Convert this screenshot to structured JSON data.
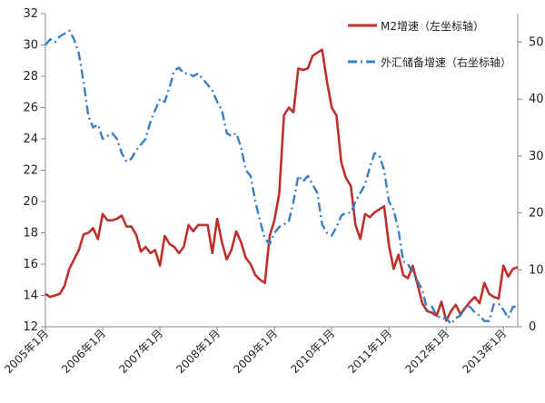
{
  "chart_data": {
    "type": "line",
    "title": "",
    "xlabel": "",
    "ylabel_left": "",
    "ylabel_right": "",
    "grid": false,
    "legend_position": "top-right",
    "y_left": {
      "min": 12,
      "max": 32,
      "ticks": [
        12,
        14,
        16,
        18,
        20,
        22,
        24,
        26,
        28,
        30,
        32
      ]
    },
    "y_right": {
      "min": 0,
      "max": 55,
      "ticks": [
        0,
        10,
        20,
        30,
        40,
        50
      ]
    },
    "x_ticks": [
      "2005年1月",
      "2006年1月",
      "2007年1月",
      "2008年1月",
      "2009年1月",
      "2010年1月",
      "2011年1月",
      "2012年1月",
      "2013年1月"
    ],
    "x_start": "2005-01",
    "series": [
      {
        "name": "M2增速（左坐标轴）",
        "axis": "left",
        "color": "#c0302b",
        "dash": "solid",
        "x": [
          "2005-01",
          "2005-02",
          "2005-03",
          "2005-04",
          "2005-05",
          "2005-06",
          "2005-07",
          "2005-08",
          "2005-09",
          "2005-10",
          "2005-11",
          "2005-12",
          "2006-01",
          "2006-02",
          "2006-03",
          "2006-04",
          "2006-05",
          "2006-06",
          "2006-07",
          "2006-08",
          "2006-09",
          "2006-10",
          "2006-11",
          "2006-12",
          "2007-01",
          "2007-02",
          "2007-03",
          "2007-04",
          "2007-05",
          "2007-06",
          "2007-07",
          "2007-08",
          "2007-09",
          "2007-10",
          "2007-11",
          "2007-12",
          "2008-01",
          "2008-02",
          "2008-03",
          "2008-04",
          "2008-05",
          "2008-06",
          "2008-07",
          "2008-08",
          "2008-09",
          "2008-10",
          "2008-11",
          "2008-12",
          "2009-01",
          "2009-02",
          "2009-03",
          "2009-04",
          "2009-05",
          "2009-06",
          "2009-07",
          "2009-08",
          "2009-09",
          "2009-10",
          "2009-11",
          "2009-12",
          "2010-01",
          "2010-02",
          "2010-03",
          "2010-04",
          "2010-05",
          "2010-06",
          "2010-07",
          "2010-08",
          "2010-09",
          "2010-10",
          "2010-11",
          "2010-12",
          "2011-01",
          "2011-02",
          "2011-03",
          "2011-04",
          "2011-05",
          "2011-06",
          "2011-07",
          "2011-08",
          "2011-09",
          "2011-10",
          "2011-11",
          "2011-12",
          "2012-01",
          "2012-02",
          "2012-03",
          "2012-04",
          "2012-05",
          "2012-06",
          "2012-07",
          "2012-08",
          "2012-09",
          "2012-10",
          "2012-11",
          "2012-12",
          "2013-01",
          "2013-02",
          "2013-03",
          "2013-04"
        ],
        "values": [
          14.1,
          13.9,
          14.0,
          14.1,
          14.6,
          15.7,
          16.3,
          16.9,
          17.9,
          18.0,
          18.3,
          17.6,
          19.2,
          18.8,
          18.8,
          18.9,
          19.1,
          18.4,
          18.4,
          17.9,
          16.8,
          17.1,
          16.7,
          16.9,
          15.9,
          17.8,
          17.3,
          17.1,
          16.7,
          17.1,
          18.5,
          18.1,
          18.5,
          18.5,
          18.5,
          16.7,
          18.9,
          17.4,
          16.3,
          16.9,
          18.1,
          17.4,
          16.4,
          16.0,
          15.3,
          15.0,
          14.8,
          17.8,
          18.8,
          20.5,
          25.5,
          26.0,
          25.7,
          28.5,
          28.4,
          28.5,
          29.3,
          29.5,
          29.7,
          27.7,
          26.0,
          25.5,
          22.5,
          21.5,
          21.0,
          18.5,
          17.6,
          19.2,
          19.0,
          19.3,
          19.5,
          19.7,
          17.2,
          15.7,
          16.6,
          15.3,
          15.1,
          15.9,
          14.7,
          13.5,
          13.0,
          12.9,
          12.7,
          13.6,
          12.4,
          13.0,
          13.4,
          12.8,
          13.2,
          13.6,
          13.9,
          13.5,
          14.8,
          14.1,
          13.9,
          13.8,
          15.9,
          15.2,
          15.7,
          15.8
        ]
      },
      {
        "name": "外汇储备增速（右坐标轴）",
        "axis": "right",
        "color": "#3a7fc1",
        "dash": "dashdot",
        "x": [
          "2005-01",
          "2005-02",
          "2005-03",
          "2005-04",
          "2005-05",
          "2005-06",
          "2005-07",
          "2005-08",
          "2005-09",
          "2005-10",
          "2005-11",
          "2005-12",
          "2006-01",
          "2006-02",
          "2006-03",
          "2006-04",
          "2006-05",
          "2006-06",
          "2006-07",
          "2006-08",
          "2006-09",
          "2006-10",
          "2006-11",
          "2006-12",
          "2007-01",
          "2007-02",
          "2007-03",
          "2007-04",
          "2007-05",
          "2007-06",
          "2007-07",
          "2007-08",
          "2007-09",
          "2007-10",
          "2007-11",
          "2007-12",
          "2008-01",
          "2008-02",
          "2008-03",
          "2008-04",
          "2008-05",
          "2008-06",
          "2008-07",
          "2008-08",
          "2008-09",
          "2008-10",
          "2008-11",
          "2008-12",
          "2009-01",
          "2009-02",
          "2009-03",
          "2009-04",
          "2009-05",
          "2009-06",
          "2009-07",
          "2009-08",
          "2009-09",
          "2009-10",
          "2009-11",
          "2009-12",
          "2010-01",
          "2010-02",
          "2010-03",
          "2010-04",
          "2010-05",
          "2010-06",
          "2010-07",
          "2010-08",
          "2010-09",
          "2010-10",
          "2010-11",
          "2010-12",
          "2011-01",
          "2011-02",
          "2011-03",
          "2011-04",
          "2011-05",
          "2011-06",
          "2011-07",
          "2011-08",
          "2011-09",
          "2011-10",
          "2011-11",
          "2011-12",
          "2012-01",
          "2012-02",
          "2012-03",
          "2012-04",
          "2012-05",
          "2012-06",
          "2012-07",
          "2012-08",
          "2012-09",
          "2012-10",
          "2012-11",
          "2012-12",
          "2013-01",
          "2013-02",
          "2013-03",
          "2013-04"
        ],
        "values": [
          49.5,
          50.5,
          50.0,
          51.0,
          51.5,
          52.0,
          50.5,
          48.0,
          43.0,
          37.0,
          35.0,
          35.5,
          33.0,
          33.5,
          34.0,
          33.0,
          30.5,
          29.0,
          29.5,
          31.0,
          32.0,
          33.0,
          36.0,
          38.0,
          40.0,
          39.5,
          42.0,
          45.0,
          45.5,
          44.5,
          44.5,
          44.0,
          44.5,
          43.5,
          42.5,
          41.5,
          39.5,
          38.0,
          34.0,
          33.5,
          34.0,
          31.5,
          27.5,
          26.5,
          22.0,
          18.5,
          15.5,
          14.5,
          16.5,
          17.5,
          18.0,
          18.5,
          22.0,
          26.5,
          25.5,
          26.5,
          25.0,
          23.5,
          18.0,
          16.5,
          16.0,
          17.5,
          19.5,
          20.0,
          20.0,
          22.0,
          23.5,
          25.0,
          28.0,
          30.5,
          30.0,
          27.5,
          22.0,
          20.5,
          17.0,
          11.5,
          11.0,
          9.5,
          8.0,
          6.5,
          3.0,
          3.5,
          2.0,
          1.5,
          1.5,
          0.5,
          1.5,
          2.0,
          3.5,
          3.5,
          2.5,
          2.0,
          1.0,
          1.0,
          4.0,
          4.0,
          3.0,
          1.5,
          3.5,
          3.5
        ]
      }
    ]
  }
}
